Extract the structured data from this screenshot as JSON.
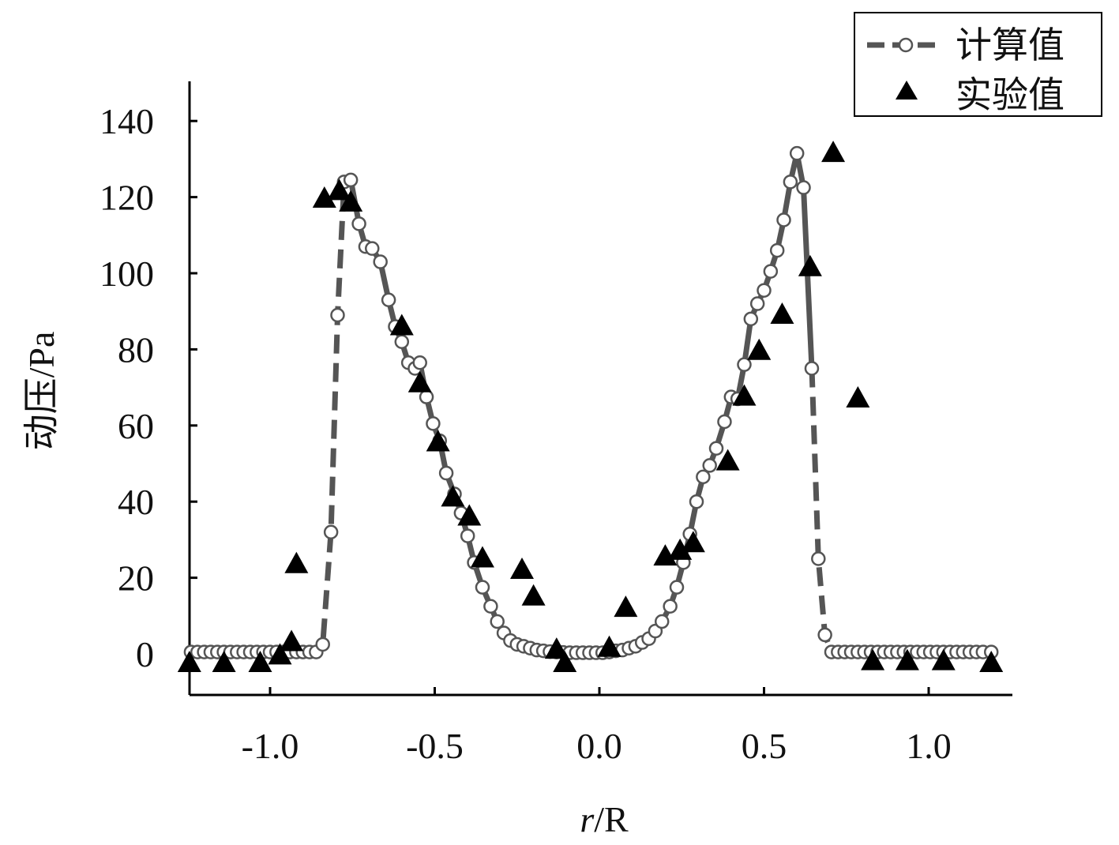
{
  "chart_data": {
    "type": "scatter",
    "title": "",
    "xlabel_italic": "r",
    "xlabel_rest": "/R",
    "ylabel": "动压/Pa",
    "xlim": [
      -1.28,
      1.24
    ],
    "ylim": [
      -10,
      150
    ],
    "x_ticks": [
      -1.0,
      -0.5,
      0.0,
      0.5,
      1.0
    ],
    "x_tick_labels": [
      "-1.0",
      "-0.5",
      "0.0",
      "0.5",
      "1.0"
    ],
    "y_ticks": [
      0,
      20,
      40,
      60,
      80,
      100,
      120,
      140
    ],
    "y_tick_labels": [
      "0",
      "20",
      "40",
      "60",
      "80",
      "100",
      "120",
      "140"
    ],
    "legend_position": "top-right",
    "series": [
      {
        "name": "计算值",
        "style": "dashed-line-with-open-circles",
        "color": "#555555",
        "points": [
          [
            -1.24,
            0.5
          ],
          [
            -1.22,
            0.5
          ],
          [
            -1.2,
            0.5
          ],
          [
            -1.18,
            0.5
          ],
          [
            -1.16,
            0.5
          ],
          [
            -1.14,
            0.5
          ],
          [
            -1.12,
            0.5
          ],
          [
            -1.1,
            0.5
          ],
          [
            -1.08,
            0.5
          ],
          [
            -1.06,
            0.5
          ],
          [
            -1.04,
            0.5
          ],
          [
            -1.02,
            0.5
          ],
          [
            -1.0,
            0.5
          ],
          [
            -0.98,
            0.5
          ],
          [
            -0.96,
            0.5
          ],
          [
            -0.94,
            0.5
          ],
          [
            -0.92,
            0.5
          ],
          [
            -0.9,
            0.5
          ],
          [
            -0.88,
            0.5
          ],
          [
            -0.86,
            0.5
          ],
          [
            -0.84,
            2.5
          ],
          [
            -0.815,
            32
          ],
          [
            -0.795,
            89
          ],
          [
            -0.775,
            124
          ],
          [
            -0.755,
            124.5
          ],
          [
            -0.73,
            113
          ],
          [
            -0.71,
            107
          ],
          [
            -0.69,
            106.5
          ],
          [
            -0.665,
            103
          ],
          [
            -0.64,
            93
          ],
          [
            -0.62,
            86
          ],
          [
            -0.6,
            82
          ],
          [
            -0.58,
            76.5
          ],
          [
            -0.56,
            75
          ],
          [
            -0.545,
            76.5
          ],
          [
            -0.525,
            67.5
          ],
          [
            -0.505,
            60.5
          ],
          [
            -0.485,
            56
          ],
          [
            -0.465,
            47.5
          ],
          [
            -0.44,
            42
          ],
          [
            -0.42,
            37
          ],
          [
            -0.4,
            31
          ],
          [
            -0.38,
            24
          ],
          [
            -0.355,
            17.5
          ],
          [
            -0.33,
            12.5
          ],
          [
            -0.31,
            8.5
          ],
          [
            -0.29,
            5.5
          ],
          [
            -0.27,
            3.5
          ],
          [
            -0.25,
            2.5
          ],
          [
            -0.23,
            2
          ],
          [
            -0.21,
            1.5
          ],
          [
            -0.19,
            1
          ],
          [
            -0.17,
            0.8
          ],
          [
            -0.15,
            0.6
          ],
          [
            -0.13,
            0.5
          ],
          [
            -0.11,
            0.4
          ],
          [
            -0.09,
            0.3
          ],
          [
            -0.07,
            0.3
          ],
          [
            -0.05,
            0.3
          ],
          [
            -0.03,
            0.3
          ],
          [
            -0.01,
            0.3
          ],
          [
            0.01,
            0.3
          ],
          [
            0.03,
            0.5
          ],
          [
            0.05,
            0.8
          ],
          [
            0.07,
            1
          ],
          [
            0.09,
            1.5
          ],
          [
            0.11,
            2
          ],
          [
            0.13,
            3
          ],
          [
            0.15,
            4
          ],
          [
            0.17,
            6
          ],
          [
            0.19,
            8.5
          ],
          [
            0.215,
            12.5
          ],
          [
            0.235,
            17.5
          ],
          [
            0.255,
            24
          ],
          [
            0.275,
            31.5
          ],
          [
            0.295,
            40
          ],
          [
            0.315,
            46.5
          ],
          [
            0.335,
            49.5
          ],
          [
            0.355,
            54
          ],
          [
            0.38,
            61
          ],
          [
            0.4,
            67.5
          ],
          [
            0.42,
            67
          ],
          [
            0.44,
            76
          ],
          [
            0.46,
            88
          ],
          [
            0.48,
            92
          ],
          [
            0.5,
            95.5
          ],
          [
            0.52,
            100.5
          ],
          [
            0.54,
            106
          ],
          [
            0.56,
            114
          ],
          [
            0.58,
            124
          ],
          [
            0.6,
            131.5
          ],
          [
            0.62,
            122.5
          ],
          [
            0.645,
            75
          ],
          [
            0.665,
            25
          ],
          [
            0.685,
            5
          ],
          [
            0.705,
            0.5
          ],
          [
            0.725,
            0.5
          ],
          [
            0.745,
            0.5
          ],
          [
            0.765,
            0.5
          ],
          [
            0.785,
            0.5
          ],
          [
            0.805,
            0.5
          ],
          [
            0.825,
            0.5
          ],
          [
            0.845,
            0.5
          ],
          [
            0.865,
            0.5
          ],
          [
            0.885,
            0.5
          ],
          [
            0.905,
            0.5
          ],
          [
            0.925,
            0.5
          ],
          [
            0.945,
            0.5
          ],
          [
            0.965,
            0.5
          ],
          [
            0.985,
            0.5
          ],
          [
            1.005,
            0.5
          ],
          [
            1.025,
            0.5
          ],
          [
            1.045,
            0.5
          ],
          [
            1.065,
            0.5
          ],
          [
            1.085,
            0.5
          ],
          [
            1.105,
            0.5
          ],
          [
            1.125,
            0.5
          ],
          [
            1.145,
            0.5
          ],
          [
            1.165,
            0.5
          ],
          [
            1.19,
            0.5
          ]
        ]
      },
      {
        "name": "实验值",
        "style": "filled-triangles",
        "color": "#000000",
        "points": [
          [
            -1.245,
            -2.5
          ],
          [
            -1.14,
            -2.5
          ],
          [
            -1.03,
            -2.5
          ],
          [
            -0.97,
            -0.5
          ],
          [
            -0.935,
            3
          ],
          [
            -0.92,
            23.5
          ],
          [
            -0.835,
            119.5
          ],
          [
            -0.79,
            121.5
          ],
          [
            -0.755,
            118.5
          ],
          [
            -0.6,
            86
          ],
          [
            -0.545,
            71
          ],
          [
            -0.49,
            55.5
          ],
          [
            -0.445,
            41
          ],
          [
            -0.395,
            36
          ],
          [
            -0.355,
            25
          ],
          [
            -0.235,
            22
          ],
          [
            -0.2,
            15
          ],
          [
            -0.13,
            1
          ],
          [
            -0.105,
            -2.5
          ],
          [
            0.03,
            1.5
          ],
          [
            0.08,
            12
          ],
          [
            0.2,
            25.5
          ],
          [
            0.245,
            27
          ],
          [
            0.285,
            29
          ],
          [
            0.39,
            50.5
          ],
          [
            0.44,
            67.5
          ],
          [
            0.485,
            79.5
          ],
          [
            0.555,
            89
          ],
          [
            0.64,
            101.5
          ],
          [
            0.71,
            131.5
          ],
          [
            0.785,
            67
          ],
          [
            0.83,
            -2
          ],
          [
            0.935,
            -2
          ],
          [
            1.045,
            -2
          ],
          [
            1.19,
            -2.5
          ]
        ]
      }
    ]
  }
}
